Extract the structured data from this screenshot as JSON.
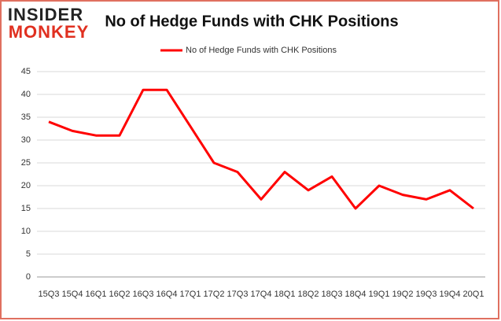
{
  "logo": {
    "top": "INSIDER",
    "bottom": "MONKEY"
  },
  "chart_data": {
    "type": "line",
    "title": "No of Hedge Funds with CHK Positions",
    "categories": [
      "15Q3",
      "15Q4",
      "16Q1",
      "16Q2",
      "16Q3",
      "16Q4",
      "17Q1",
      "17Q2",
      "17Q3",
      "17Q4",
      "18Q1",
      "18Q2",
      "18Q3",
      "18Q4",
      "19Q1",
      "19Q2",
      "19Q3",
      "19Q4",
      "20Q1"
    ],
    "series": [
      {
        "name": "No of Hedge Funds with CHK Positions",
        "color": "#ff0000",
        "values": [
          34,
          32,
          31,
          31,
          41,
          41,
          33,
          25,
          23,
          17,
          23,
          19,
          22,
          15,
          20,
          18,
          17,
          19,
          15
        ]
      }
    ],
    "ylim": [
      0,
      45
    ],
    "yticks": [
      0,
      5,
      10,
      15,
      20,
      25,
      30,
      35,
      40,
      45
    ],
    "grid": true,
    "legend": "top"
  }
}
